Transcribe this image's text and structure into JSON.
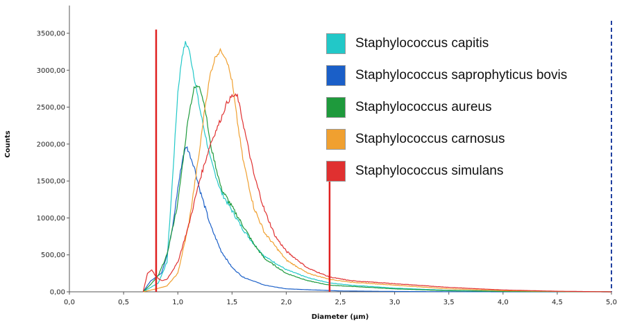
{
  "chart_data": {
    "type": "line",
    "xlabel": "Diameter (µm)",
    "ylabel": "Counts",
    "xlim": [
      0,
      5
    ],
    "ylim": [
      0,
      3800
    ],
    "x_ticks": [
      "0,0",
      "0,5",
      "1,0",
      "1,5",
      "2,0",
      "2,5",
      "3,0",
      "3,5",
      "4,0",
      "4,5",
      "5,0"
    ],
    "y_ticks": [
      "0,00",
      "500,00",
      "1000,00",
      "1500,00",
      "2000,00",
      "2500,00",
      "3000,00",
      "3500,00"
    ],
    "markers": [
      {
        "x": 0.8,
        "y_top": 3550,
        "color": "#e02020"
      },
      {
        "x": 2.4,
        "y_top": 1500,
        "color": "#e02020"
      }
    ],
    "series": [
      {
        "name": "Staphylococcus capitis",
        "color": "#22c8c8",
        "x": [
          0.68,
          0.75,
          0.82,
          0.9,
          0.95,
          1.0,
          1.04,
          1.07,
          1.1,
          1.14,
          1.2,
          1.3,
          1.4,
          1.5,
          1.6,
          1.7,
          1.8,
          2.0,
          2.2,
          2.4,
          2.6,
          3.0,
          3.5,
          4.0,
          4.5,
          5.0
        ],
        "y": [
          0,
          60,
          120,
          400,
          1500,
          2700,
          3200,
          3370,
          3300,
          3000,
          2500,
          1800,
          1350,
          1100,
          850,
          650,
          480,
          300,
          190,
          120,
          90,
          50,
          20,
          8,
          3,
          0
        ]
      },
      {
        "name": "Staphylococcus saprophyticus bovis",
        "color": "#1a5fc8",
        "x": [
          0.68,
          0.75,
          0.8,
          0.85,
          0.9,
          0.95,
          1.0,
          1.05,
          1.08,
          1.1,
          1.15,
          1.2,
          1.3,
          1.4,
          1.5,
          1.6,
          1.8,
          2.0,
          2.5,
          3.0,
          3.5,
          4.0,
          5.0
        ],
        "y": [
          0,
          150,
          200,
          260,
          500,
          850,
          1400,
          1850,
          1970,
          1900,
          1700,
          1400,
          900,
          550,
          330,
          200,
          90,
          40,
          12,
          5,
          2,
          0,
          0
        ]
      },
      {
        "name": "Staphylococcus aureus",
        "color": "#1e9a3c",
        "x": [
          0.68,
          0.75,
          0.82,
          0.9,
          1.0,
          1.05,
          1.1,
          1.15,
          1.2,
          1.25,
          1.3,
          1.4,
          1.5,
          1.6,
          1.7,
          1.8,
          2.0,
          2.2,
          2.4,
          3.0,
          3.5,
          4.0,
          5.0
        ],
        "y": [
          0,
          100,
          220,
          500,
          1200,
          1800,
          2400,
          2750,
          2800,
          2500,
          2000,
          1400,
          1150,
          900,
          650,
          450,
          250,
          150,
          90,
          40,
          15,
          5,
          0
        ]
      },
      {
        "name": "Staphylococcus carnosus",
        "color": "#f0a030",
        "x": [
          0.68,
          0.8,
          0.9,
          1.0,
          1.1,
          1.2,
          1.25,
          1.3,
          1.35,
          1.4,
          1.45,
          1.5,
          1.55,
          1.6,
          1.7,
          1.8,
          2.0,
          2.2,
          2.4,
          2.6,
          3.0,
          3.5,
          4.0,
          4.5,
          5.0
        ],
        "y": [
          0,
          40,
          80,
          250,
          900,
          1900,
          2500,
          2950,
          3200,
          3270,
          3150,
          2850,
          2300,
          1800,
          1150,
          800,
          430,
          250,
          170,
          130,
          90,
          40,
          15,
          5,
          0
        ]
      },
      {
        "name": "Staphylococcus simulans",
        "color": "#e03030",
        "x": [
          0.68,
          0.72,
          0.76,
          0.8,
          0.85,
          0.9,
          1.0,
          1.1,
          1.2,
          1.3,
          1.4,
          1.45,
          1.5,
          1.55,
          1.6,
          1.7,
          1.8,
          1.9,
          2.0,
          2.2,
          2.4,
          2.6,
          3.0,
          3.5,
          4.0,
          4.5,
          5.0
        ],
        "y": [
          0,
          250,
          300,
          200,
          150,
          170,
          400,
          900,
          1500,
          2000,
          2350,
          2550,
          2650,
          2650,
          2300,
          1600,
          1100,
          750,
          550,
          320,
          200,
          150,
          110,
          60,
          25,
          8,
          0
        ]
      }
    ]
  }
}
